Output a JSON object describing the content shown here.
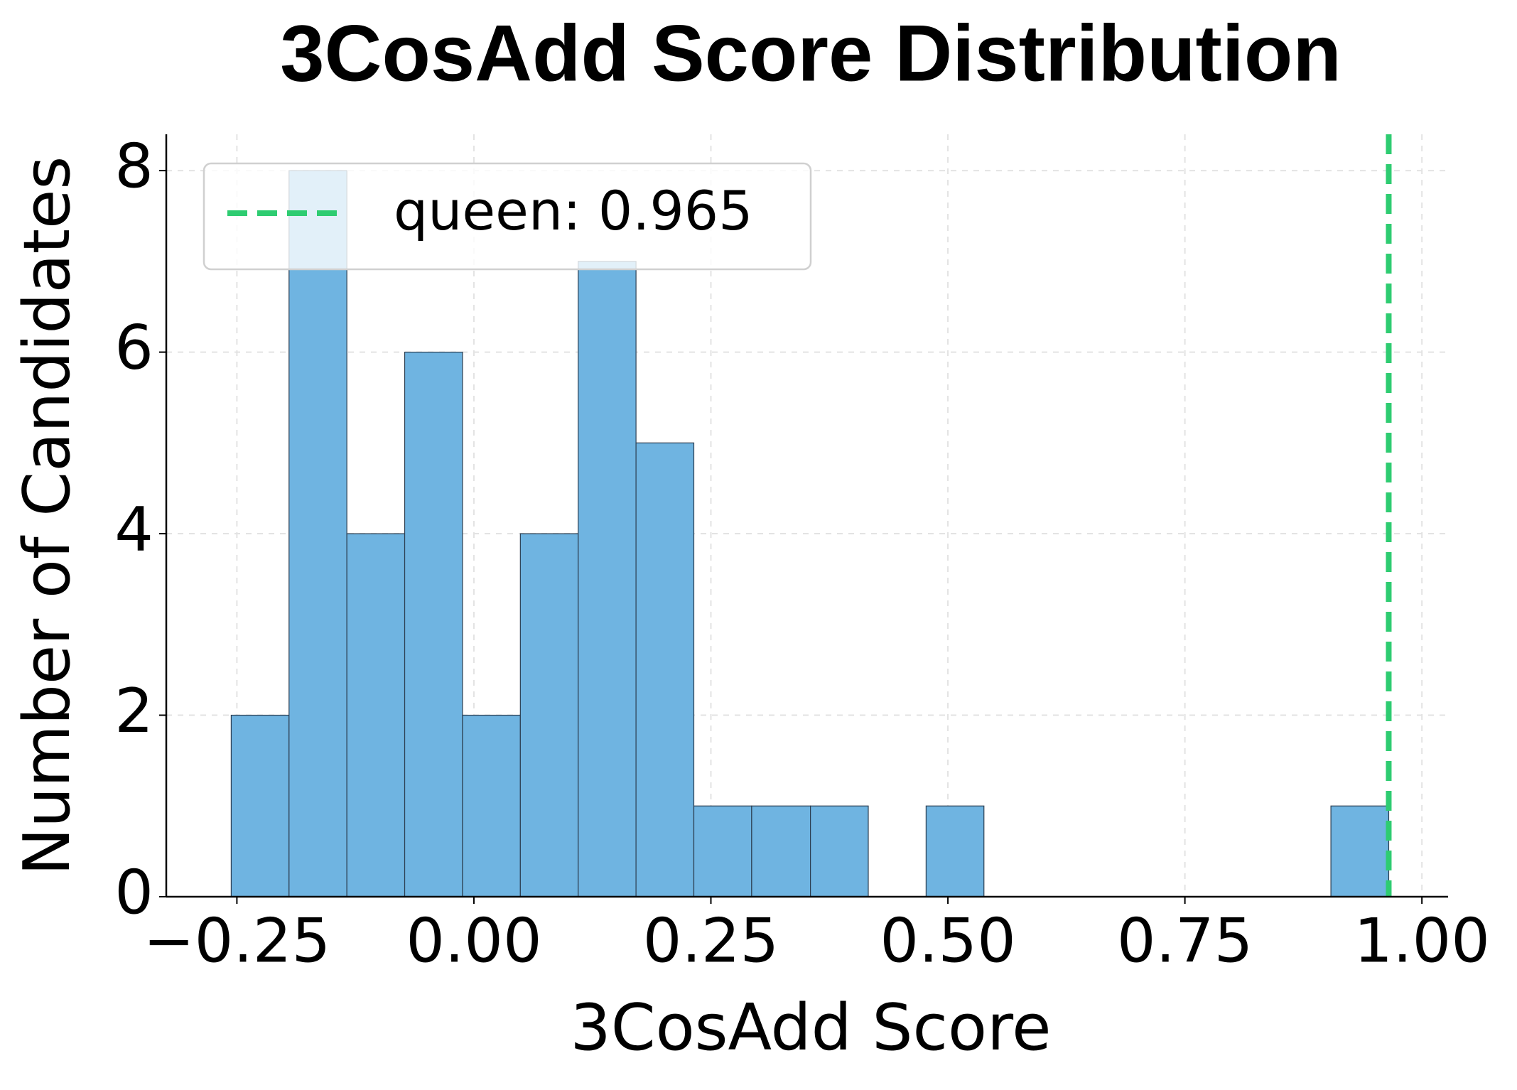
{
  "chart_data": {
    "type": "histogram",
    "title": "3CosAdd Score Distribution",
    "xlabel": "3CosAdd Score",
    "ylabel": "Number of Candidates",
    "bins": [
      -0.256,
      -0.195,
      -0.134,
      -0.073,
      -0.012,
      0.049,
      0.11,
      0.171,
      0.232,
      0.293,
      0.355,
      0.416,
      0.477,
      0.538,
      0.599,
      0.66,
      0.721,
      0.782,
      0.843,
      0.904,
      0.965
    ],
    "values": [
      2,
      8,
      4,
      6,
      2,
      4,
      7,
      5,
      1,
      1,
      1,
      0,
      1,
      0,
      0,
      0,
      0,
      0,
      0,
      1
    ],
    "color": "#6fb4e1",
    "edgecolor": "#2c3e50",
    "reference_line": {
      "value": 0.965,
      "label": "queen: 0.965",
      "color": "#2ecc71"
    },
    "xlim": [
      -0.3245,
      1.0276
    ],
    "ylim": [
      0,
      8.4
    ],
    "xticks": [
      {
        "value": -0.25,
        "label": "−0.25"
      },
      {
        "value": 0,
        "label": "0.00"
      },
      0.25,
      {
        "value": 0.5,
        "label": "0.50"
      },
      0.75,
      {
        "value": 1,
        "label": "1.00"
      }
    ],
    "yticks": [
      0,
      2,
      4,
      6,
      8
    ],
    "grid": true,
    "legend": "upper left"
  }
}
